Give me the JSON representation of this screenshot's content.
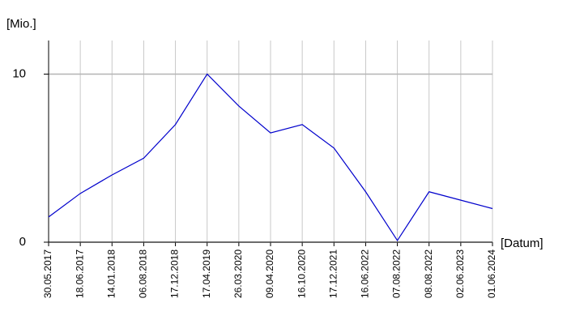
{
  "chart_data": {
    "type": "line",
    "y_axis_label": "[Mio.]",
    "x_axis_label": "[Datum]",
    "categories": [
      "30.05.2017",
      "18.06.2017",
      "14.01.2018",
      "06.08.2018",
      "17.12.2018",
      "17.04.2019",
      "26.03.2020",
      "09.04.2020",
      "16.10.2020",
      "17.12.2021",
      "16.06.2022",
      "07.08.2022",
      "08.08.2022",
      "02.06.2023",
      "01.06.2024"
    ],
    "series": [
      {
        "color": "#0000cc",
        "values": [
          1.5,
          2.9,
          4.0,
          5.0,
          7.0,
          10.0,
          8.1,
          6.5,
          7.0,
          5.6,
          3.0,
          0.1,
          3.0,
          2.5,
          2.0
        ]
      }
    ],
    "ylim": [
      0,
      12
    ],
    "yticks": [
      0,
      10
    ],
    "grid": true
  }
}
